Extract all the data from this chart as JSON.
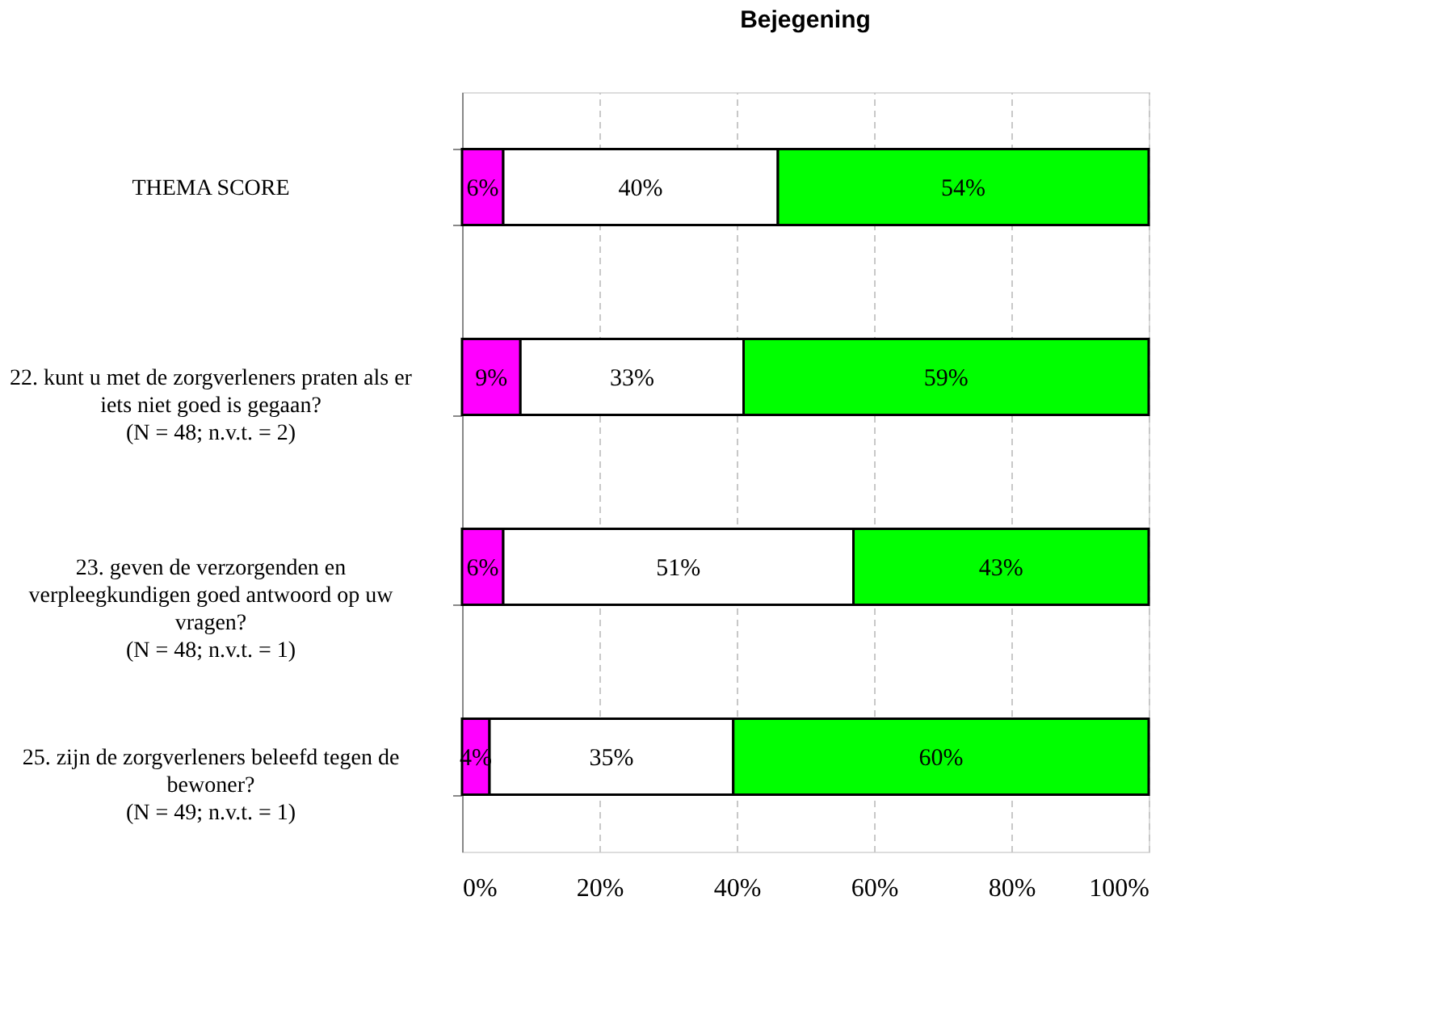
{
  "chart_data": {
    "type": "bar",
    "orientation": "horizontal",
    "stacked": true,
    "title": "Bejegening",
    "categories": [
      "THEMA SCORE",
      "22. kunt u met de zorgverleners praten als er\niets niet goed is gegaan?\n(N = 48; n.v.t. = 2)",
      "23. geven de verzorgenden en\nverpleegkundigen goed antwoord op uw\nvragen?\n(N = 48; n.v.t. = 1)",
      "25. zijn de zorgverleners beleefd tegen de\nbewoner?\n(N = 49; n.v.t. = 1)"
    ],
    "series": [
      {
        "color": "#ff00ff",
        "values": [
          6,
          8.5,
          6,
          4
        ],
        "value_labels": [
          "6%",
          "9%",
          "6%",
          "4%"
        ]
      },
      {
        "color": "#ffffff",
        "values": [
          40,
          32.5,
          51,
          35.5
        ],
        "value_labels": [
          "40%",
          "33%",
          "51%",
          "35%"
        ]
      },
      {
        "color": "#00ff00",
        "values": [
          54,
          59,
          43,
          60.5
        ],
        "value_labels": [
          "54%",
          "59%",
          "43%",
          "60%"
        ]
      }
    ],
    "xlim": [
      0,
      100
    ],
    "xticks": [
      {
        "value": 0,
        "label": "0%"
      },
      {
        "value": 20,
        "label": "20%"
      },
      {
        "value": 40,
        "label": "40%"
      },
      {
        "value": 60,
        "label": "60%"
      },
      {
        "value": 80,
        "label": "80%"
      },
      {
        "value": 100,
        "label": "100%"
      }
    ],
    "grid": "x",
    "legend": false
  }
}
